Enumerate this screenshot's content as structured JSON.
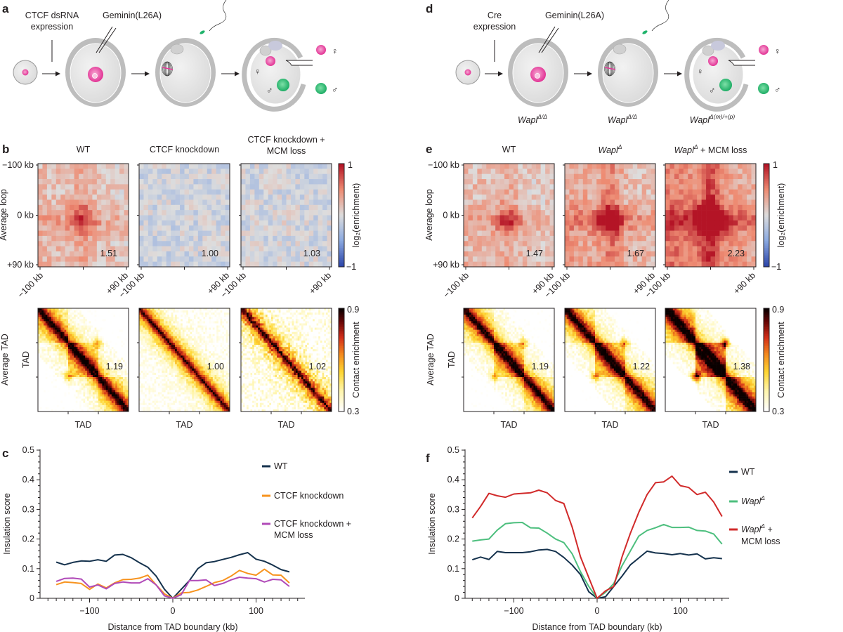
{
  "panel_labels": {
    "a": "a",
    "b": "b",
    "c": "c",
    "d": "d",
    "e": "e",
    "f": "f"
  },
  "schematic_a": {
    "step1_line1": "CTCF dsRNA",
    "step1_line2": "expression",
    "injection": "Geminin(L26A)",
    "female": "♀",
    "male": "♂"
  },
  "schematic_d": {
    "step1_line1": "Cre",
    "step1_line2": "expression",
    "injection": "Geminin(L26A)",
    "female": "♀",
    "male": "♂",
    "genotypes": [
      {
        "base": "Wapl",
        "sup": "Δ/Δ"
      },
      {
        "base": "Wapl",
        "sup": "Δ/Δ"
      },
      {
        "base": "Wapl",
        "sup": "Δ(m)/+(p)"
      }
    ]
  },
  "colors": {
    "maternal_pronucleus": "#e6399b",
    "paternal_pronucleus": "#1fb36b",
    "cell_fill": "#e6e6e6",
    "zona": "#b3b3b3",
    "wt": "#15324d",
    "ctcf_kd": "#f7931e",
    "ctcf_kd_mcm": "#b04ab8",
    "wapl": "#4dbf7e",
    "wapl_mcm": "#d12a2a"
  },
  "chart_data": [
    {
      "id": "b-loop",
      "type": "heatmap",
      "ylabel": "Average loop",
      "yticks": [
        "−100 kb",
        "0 kb",
        "+90 kb"
      ],
      "xticks": [
        "−100 kb",
        "+90 kb"
      ],
      "panels": [
        {
          "title": "WT",
          "value": "1.51",
          "loop_strength": 0.45
        },
        {
          "title": "CTCF knockdown",
          "value": "1.00",
          "loop_strength": 0.0
        },
        {
          "title_line1": "CTCF knockdown +",
          "title_line2": "MCM loss",
          "value": "1.03",
          "loop_strength": 0.03
        }
      ],
      "colorbar": {
        "label": "log₂(enrichment)",
        "range": [
          -1,
          1
        ],
        "ticks": [
          "1",
          "−1"
        ],
        "colormap": "blue-grey-red"
      }
    },
    {
      "id": "b-tad",
      "type": "heatmap",
      "ylabel": "Average TAD",
      "ylabel2": "TAD",
      "xlabel": "TAD",
      "panels": [
        {
          "value": "1.19",
          "tad_strength": 0.19
        },
        {
          "value": "1.00",
          "tad_strength": 0.0
        },
        {
          "value": "1.02",
          "tad_strength": 0.02
        }
      ],
      "colorbar": {
        "label": "Contact enrichment",
        "range": [
          0.3,
          0.9
        ],
        "ticks": [
          "0.9",
          "0.3"
        ],
        "colormap": "white-yellow-red-black"
      }
    },
    {
      "id": "c",
      "type": "line",
      "xlabel": "Distance from TAD boundary (kb)",
      "ylabel": "Insulation score",
      "xlim": [
        -160,
        158
      ],
      "ylim": [
        0,
        0.5
      ],
      "xticks": [
        "−100",
        "0",
        "100"
      ],
      "xtick_values": [
        -100,
        0,
        100
      ],
      "yticks": [
        "0",
        "0.1",
        "0.2",
        "0.3",
        "0.4",
        "0.5"
      ],
      "legend": "right",
      "x": [
        -140,
        -130,
        -120,
        -110,
        -100,
        -90,
        -80,
        -70,
        -60,
        -50,
        -40,
        -30,
        -20,
        -10,
        0,
        10,
        20,
        30,
        40,
        50,
        60,
        70,
        80,
        90,
        100,
        110,
        120,
        130,
        140
      ],
      "series": [
        {
          "name": "WT",
          "color": "#15324d",
          "values": [
            0.122,
            0.113,
            0.121,
            0.126,
            0.125,
            0.13,
            0.125,
            0.146,
            0.148,
            0.137,
            0.12,
            0.105,
            0.075,
            0.03,
            0,
            0.03,
            0.06,
            0.1,
            0.12,
            0.124,
            0.131,
            0.138,
            0.147,
            0.154,
            0.132,
            0.125,
            0.112,
            0.097,
            0.089
          ]
        },
        {
          "name": "CTCF knockdown",
          "color": "#f7931e",
          "values": [
            0.046,
            0.055,
            0.053,
            0.05,
            0.03,
            0.048,
            0.035,
            0.052,
            0.063,
            0.064,
            0.068,
            0.078,
            0.045,
            0.015,
            0,
            0.018,
            0.02,
            0.028,
            0.04,
            0.053,
            0.06,
            0.075,
            0.094,
            0.084,
            0.078,
            0.098,
            0.079,
            0.078,
            0.052
          ]
        },
        {
          "name_line1": "CTCF knockdown +",
          "name_line2": "MCM loss",
          "color": "#b04ab8",
          "values": [
            0.057,
            0.067,
            0.068,
            0.065,
            0.038,
            0.045,
            0.032,
            0.05,
            0.055,
            0.052,
            0.052,
            0.066,
            0.045,
            0.008,
            0,
            0.012,
            0.06,
            0.06,
            0.062,
            0.043,
            0.05,
            0.062,
            0.071,
            0.068,
            0.066,
            0.055,
            0.064,
            0.062,
            0.04
          ]
        }
      ]
    },
    {
      "id": "e-loop",
      "type": "heatmap",
      "ylabel": "Average loop",
      "yticks": [
        "−100 kb",
        "0 kb",
        "+90 kb"
      ],
      "xticks": [
        "−100 kb",
        "+90 kb"
      ],
      "panels": [
        {
          "title": "WT",
          "value": "1.47",
          "loop_strength": 0.45
        },
        {
          "title_base": "Wapl",
          "title_sup": "Δ",
          "value": "1.67",
          "loop_strength": 0.7
        },
        {
          "title_base": "Wapl",
          "title_sup": "Δ",
          "title_rest": " + MCM loss",
          "value": "2.23",
          "loop_strength": 1.15
        }
      ],
      "colorbar": {
        "label": "log₂(enrichment)",
        "range": [
          -1,
          1
        ],
        "ticks": [
          "1",
          "−1"
        ],
        "colormap": "blue-grey-red"
      }
    },
    {
      "id": "e-tad",
      "type": "heatmap",
      "ylabel": "Average TAD",
      "ylabel2": "TAD",
      "xlabel": "TAD",
      "panels": [
        {
          "value": "1.19",
          "tad_strength": 0.19
        },
        {
          "value": "1.22",
          "tad_strength": 0.22
        },
        {
          "value": "1.38",
          "tad_strength": 0.38
        }
      ],
      "colorbar": {
        "label": "Contact enrichment",
        "range": [
          0.3,
          0.9
        ],
        "ticks": [
          "0.9",
          "0.3"
        ],
        "colormap": "white-yellow-red-black"
      }
    },
    {
      "id": "f",
      "type": "line",
      "xlabel": "Distance from TAD boundary (kb)",
      "ylabel": "Insulation score",
      "xlim": [
        -160,
        160
      ],
      "ylim": [
        0,
        0.5
      ],
      "xticks": [
        "−100",
        "0",
        "100"
      ],
      "xtick_values": [
        -100,
        0,
        100
      ],
      "yticks": [
        "0",
        "0.1",
        "0.2",
        "0.3",
        "0.4",
        "0.5"
      ],
      "legend": "right",
      "x": [
        -150,
        -140,
        -130,
        -120,
        -110,
        -100,
        -90,
        -80,
        -70,
        -60,
        -50,
        -40,
        -30,
        -20,
        -10,
        0,
        10,
        20,
        30,
        40,
        50,
        60,
        70,
        80,
        90,
        100,
        110,
        120,
        130,
        140,
        150
      ],
      "series": [
        {
          "name": "WT",
          "color": "#15324d",
          "values": [
            0.13,
            0.139,
            0.131,
            0.158,
            0.154,
            0.154,
            0.154,
            0.157,
            0.163,
            0.165,
            0.158,
            0.138,
            0.112,
            0.08,
            0.022,
            0,
            0.005,
            0.04,
            0.075,
            0.113,
            0.136,
            0.159,
            0.153,
            0.151,
            0.147,
            0.151,
            0.146,
            0.15,
            0.133,
            0.137,
            0.134
          ]
        },
        {
          "name_base": "Wapl",
          "name_sup": "Δ",
          "color": "#4dbf7e",
          "values": [
            0.193,
            0.197,
            0.2,
            0.23,
            0.252,
            0.255,
            0.256,
            0.238,
            0.237,
            0.22,
            0.2,
            0.188,
            0.15,
            0.09,
            0.04,
            0,
            0.02,
            0.05,
            0.11,
            0.16,
            0.21,
            0.229,
            0.238,
            0.249,
            0.239,
            0.239,
            0.24,
            0.229,
            0.227,
            0.217,
            0.183
          ]
        },
        {
          "name_base": "Wapl",
          "name_sup": "Δ",
          "name_rest": " +",
          "name_line2": "MCM loss",
          "color": "#d12a2a",
          "values": [
            0.271,
            0.31,
            0.354,
            0.346,
            0.341,
            0.352,
            0.354,
            0.356,
            0.365,
            0.356,
            0.33,
            0.32,
            0.24,
            0.14,
            0.07,
            0,
            0.025,
            0.04,
            0.14,
            0.22,
            0.29,
            0.35,
            0.39,
            0.393,
            0.412,
            0.38,
            0.374,
            0.35,
            0.358,
            0.325,
            0.276
          ]
        }
      ]
    }
  ]
}
